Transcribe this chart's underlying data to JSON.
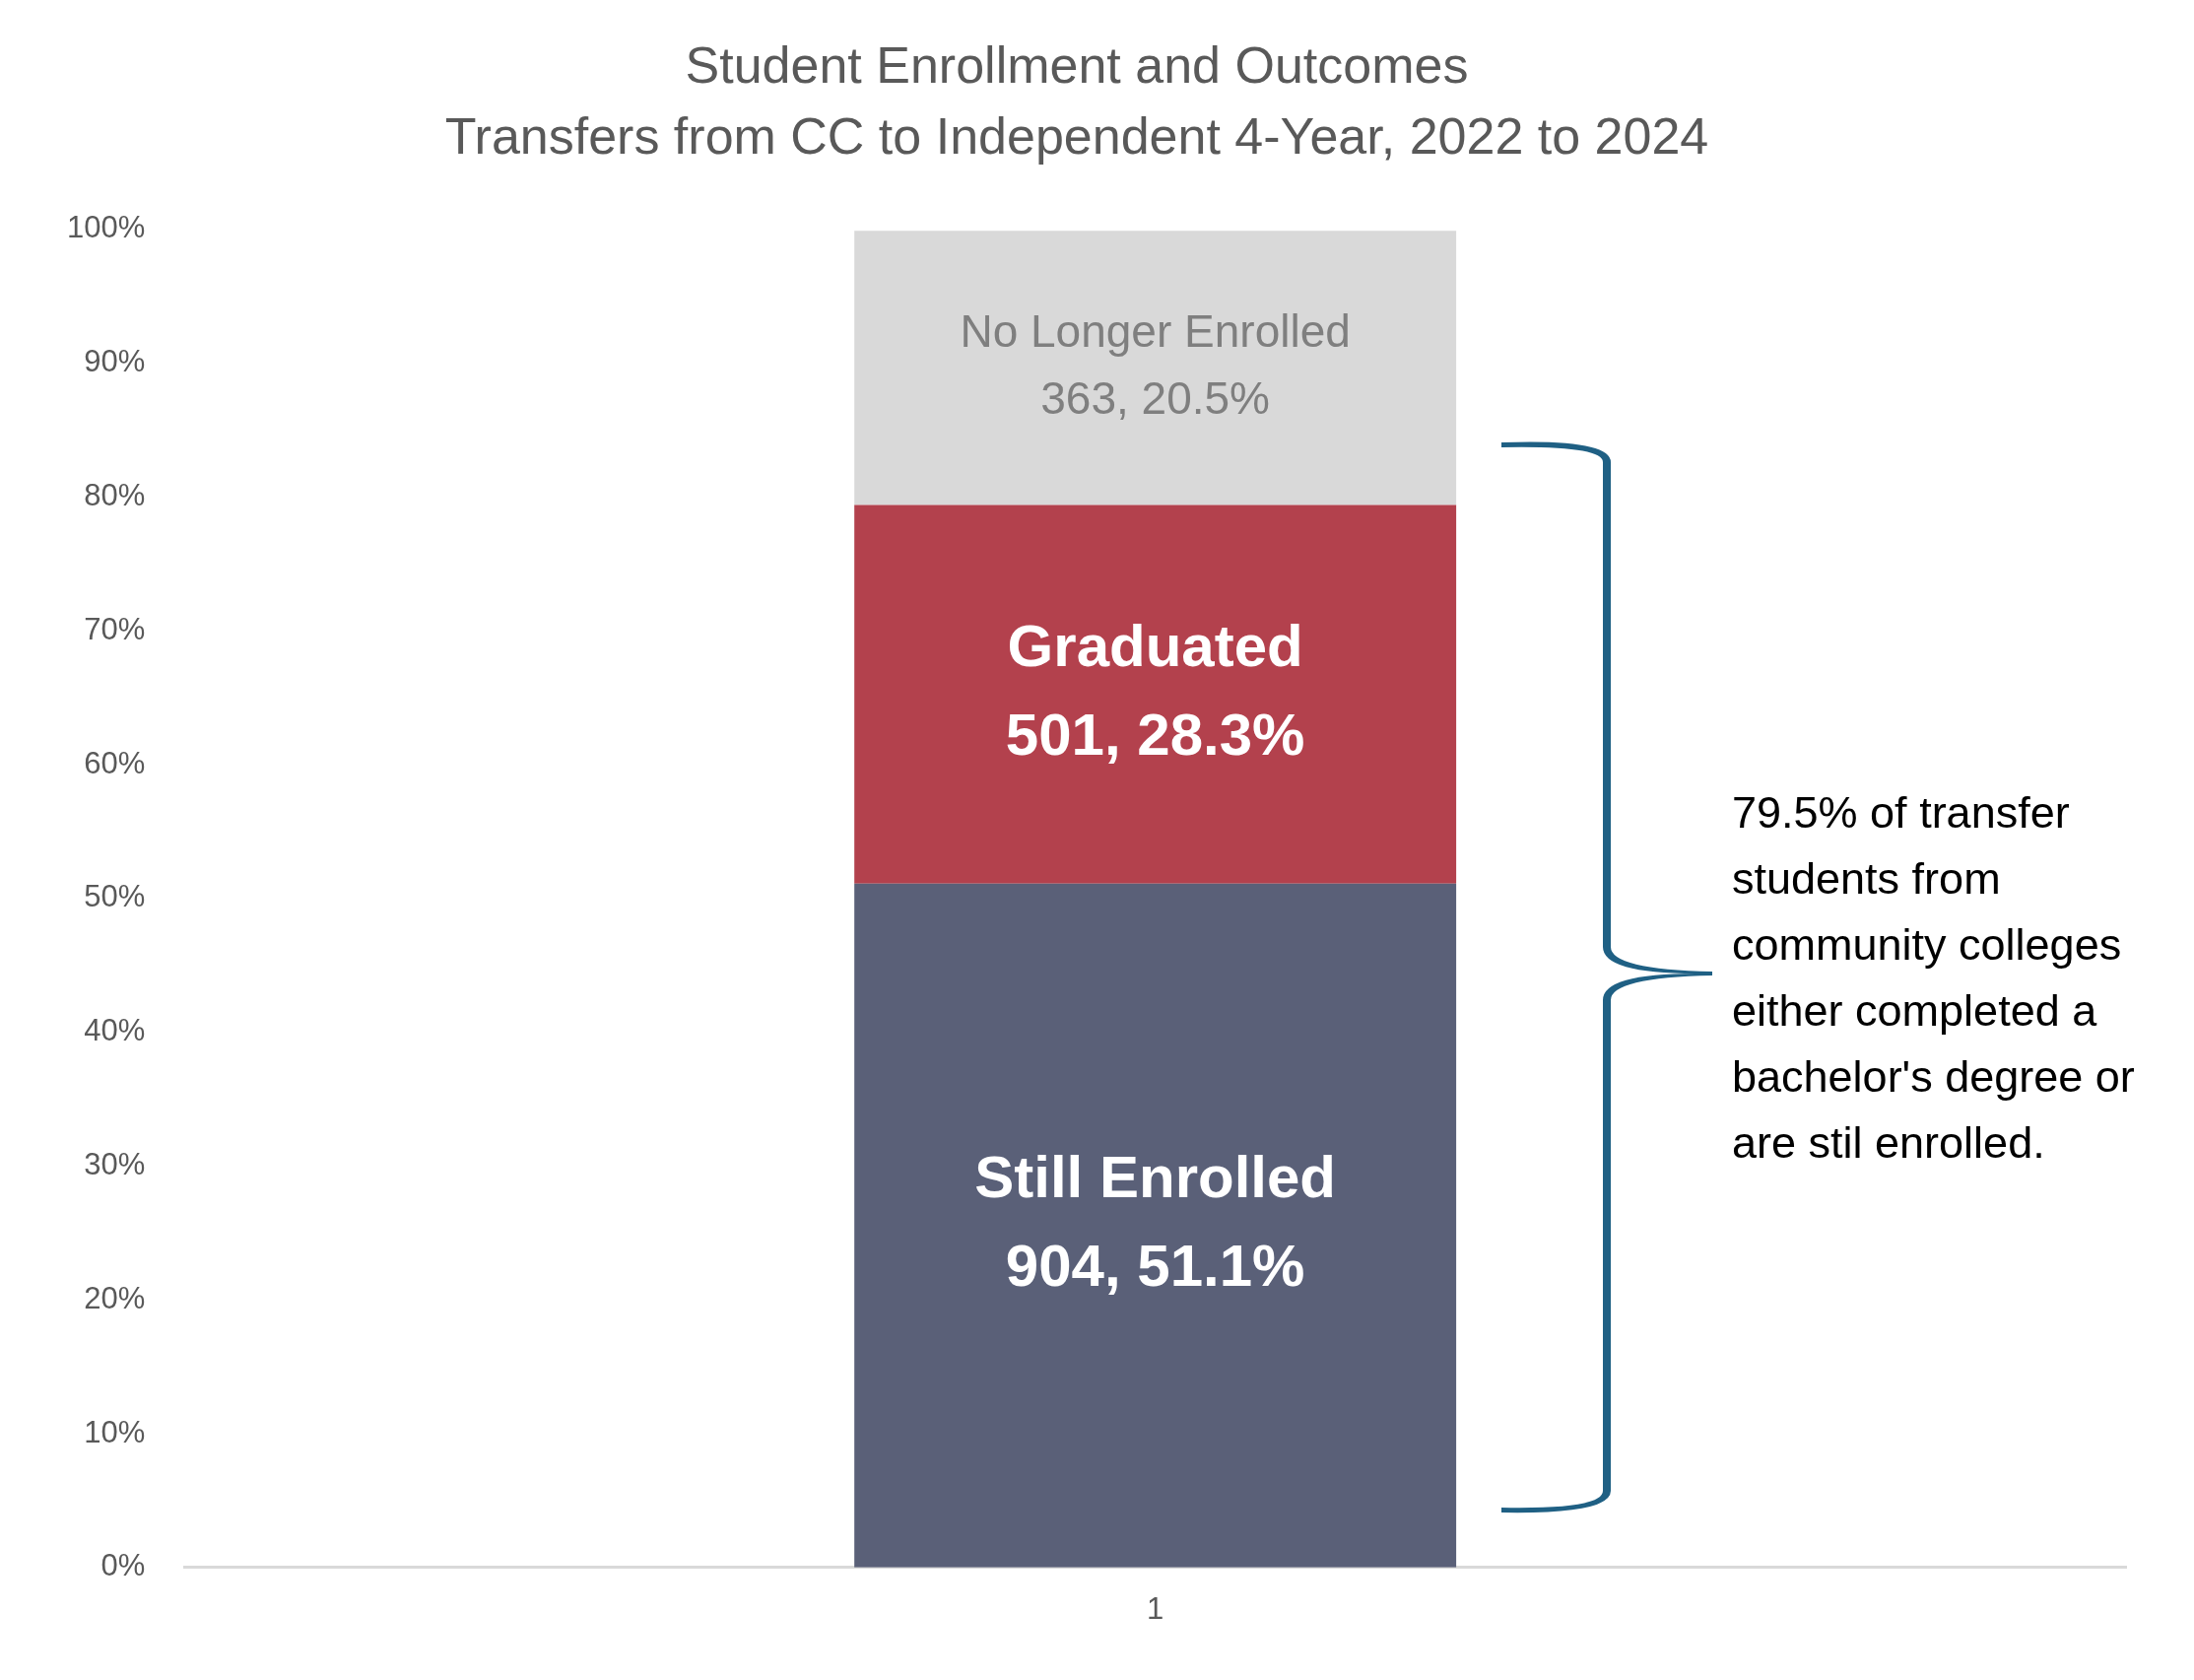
{
  "chart_data": {
    "type": "bar",
    "title": "Student Enrollment and Outcomes",
    "subtitle": "Transfers from CC to Independent 4-Year, 2022 to 2024",
    "categories": [
      "1"
    ],
    "stacked": true,
    "legend": false,
    "grid": false,
    "series": [
      {
        "name": "Still Enrolled",
        "color": "#5a6078",
        "values": [
          51.1
        ],
        "value_labels": [
          "904, 51.1%"
        ]
      },
      {
        "name": "Graduated",
        "color": "#b3414d",
        "values": [
          28.3
        ],
        "value_labels": [
          "501, 28.3%"
        ]
      },
      {
        "name": "No Longer Enrolled",
        "color": "#d9d9d9",
        "values": [
          20.5
        ],
        "value_labels": [
          "363, 20.5%"
        ]
      }
    ],
    "ylim": [
      0,
      100
    ],
    "yticks": [
      {
        "value": 0,
        "label": "0%"
      },
      {
        "value": 10,
        "label": "10%"
      },
      {
        "value": 20,
        "label": "20%"
      },
      {
        "value": 30,
        "label": "30%"
      },
      {
        "value": 40,
        "label": "40%"
      },
      {
        "value": 50,
        "label": "50%"
      },
      {
        "value": 60,
        "label": "60%"
      },
      {
        "value": 70,
        "label": "70%"
      },
      {
        "value": 80,
        "label": "80%"
      },
      {
        "value": 90,
        "label": "90%"
      },
      {
        "value": 100,
        "label": "100%"
      }
    ],
    "annotations": [
      "79.5% of transfer students from community colleges either completed a bachelor's degree or are stil enrolled."
    ]
  }
}
